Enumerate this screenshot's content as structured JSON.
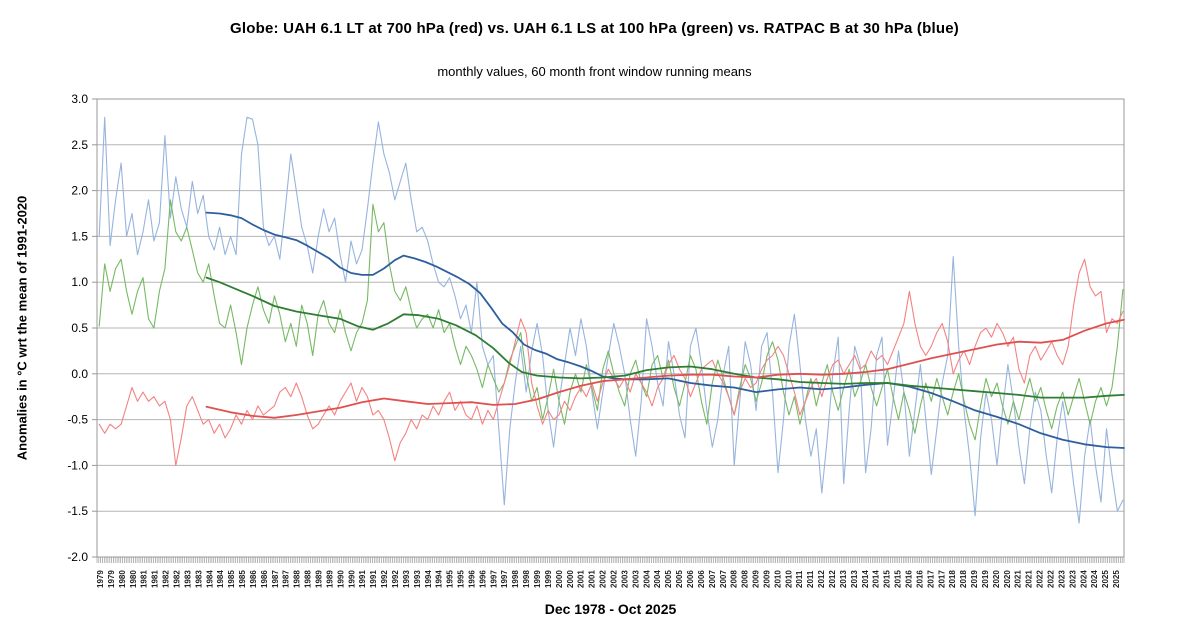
{
  "chart": {
    "title": "Globe: UAH 6.1 LT at 700 hPa (red) vs. UAH 6.1 LS at 100 hPa (green) vs. RATPAC B at 30 hPa (blue)",
    "subtitle": "monthly values, 60 month front window running means",
    "ylabel": "Anomalies in °C wrt the mean of 1991-2020",
    "xlabel": "Dec 1978 - Oct 2025"
  },
  "chart_data": {
    "type": "line",
    "title": "Globe: UAH 6.1 LT at 700 hPa (red) vs. UAH 6.1 LS at 100 hPa (green) vs. RATPAC B at 30 hPa (blue)",
    "subtitle": "monthly values, 60 month front window running means",
    "ylabel": "Anomalies in °C wrt the mean of 1991-2020",
    "xlabel": "Dec 1978 - Oct 2025",
    "grid": true,
    "legend": "none",
    "ylim": [
      -2.0,
      3.0
    ],
    "yticks": [
      "3.0",
      "2.5",
      "2.0",
      "1.5",
      "1.0",
      "0.5",
      "0.0",
      "-0.5",
      "-1.0",
      "-1.5",
      "-2.0"
    ],
    "x_range": [
      1978.9,
      2025.8
    ],
    "x_tick_years": [
      1979,
      1980,
      1981,
      1982,
      1983,
      1984,
      1985,
      1986,
      1987,
      1988,
      1989,
      1990,
      1991,
      1992,
      1993,
      1994,
      1995,
      1996,
      1997,
      1998,
      1999,
      2000,
      2001,
      2002,
      2003,
      2004,
      2005,
      2006,
      2007,
      2008,
      2009,
      2010,
      2011,
      2012,
      2013,
      2014,
      2015,
      2016,
      2017,
      2018,
      2019,
      2020,
      2021,
      2022,
      2023,
      2024,
      2025
    ],
    "x_tick_label_repeat": 2,
    "colors": {
      "red_monthly": "#f48282",
      "red_mean": "#e05050",
      "green_monthly": "#77b964",
      "green_mean": "#2e7d32",
      "blue_monthly": "#97b4de",
      "blue_mean": "#2f5e9e",
      "grid": "#b5b5b5",
      "axis": "#999999"
    },
    "series": [
      {
        "name": "RATPAC B 30 hPa monthly",
        "role": "monthly",
        "color": "#97b4de",
        "width": 1.1,
        "x0": 1979.0,
        "x_step": 0.25,
        "values": [
          1.5,
          2.8,
          1.4,
          1.9,
          2.3,
          1.5,
          1.75,
          1.3,
          1.55,
          1.9,
          1.45,
          1.65,
          2.6,
          1.7,
          2.15,
          1.8,
          1.6,
          2.1,
          1.75,
          1.95,
          1.5,
          1.35,
          1.6,
          1.3,
          1.5,
          1.3,
          2.4,
          2.8,
          2.78,
          2.5,
          1.6,
          1.4,
          1.5,
          1.25,
          1.8,
          2.4,
          2.0,
          1.6,
          1.4,
          1.1,
          1.5,
          1.8,
          1.55,
          1.7,
          1.3,
          1.0,
          1.45,
          1.2,
          1.35,
          1.8,
          2.3,
          2.75,
          2.4,
          2.2,
          1.9,
          2.1,
          2.3,
          1.9,
          1.55,
          1.6,
          1.45,
          1.2,
          1.0,
          0.95,
          1.05,
          0.85,
          0.6,
          0.75,
          0.45,
          1.0,
          0.3,
          0.1,
          0.2,
          -0.6,
          -1.43,
          -0.6,
          -0.1,
          0.3,
          -0.2,
          0.25,
          0.55,
          0.2,
          -0.4,
          -0.8,
          -0.3,
          0.1,
          0.5,
          0.2,
          0.6,
          0.3,
          -0.2,
          -0.6,
          -0.2,
          0.2,
          0.55,
          0.3,
          0.0,
          -0.5,
          -0.9,
          -0.3,
          0.6,
          0.3,
          -0.1,
          -0.35,
          0.35,
          0.0,
          -0.45,
          -0.7,
          0.3,
          0.5,
          0.1,
          -0.4,
          -0.8,
          -0.5,
          0.0,
          0.3,
          -1.0,
          -0.3,
          0.35,
          0.1,
          -0.4,
          0.3,
          0.45,
          -0.2,
          -1.08,
          -0.5,
          0.3,
          0.65,
          0.1,
          -0.5,
          -0.9,
          -0.6,
          -1.3,
          -0.7,
          0.0,
          0.4,
          -1.2,
          -0.4,
          0.3,
          0.1,
          -1.08,
          -0.6,
          0.2,
          0.4,
          -0.78,
          -0.3,
          0.25,
          -0.2,
          -0.9,
          -0.4,
          0.1,
          -0.5,
          -1.1,
          -0.6,
          -0.1,
          0.2,
          1.28,
          0.3,
          -0.4,
          -0.9,
          -1.55,
          -0.7,
          -0.2,
          -0.5,
          -1.0,
          -0.4,
          0.1,
          -0.3,
          -0.8,
          -1.2,
          -0.6,
          -0.2,
          -0.4,
          -0.9,
          -1.3,
          -0.7,
          -0.3,
          -0.7,
          -1.2,
          -1.63,
          -0.9,
          -0.5,
          -1.0,
          -1.4,
          -0.6,
          -1.1,
          -1.5,
          -1.38
        ]
      },
      {
        "name": "UAH 6.1 LS 100 hPa monthly",
        "role": "monthly",
        "color": "#77b964",
        "width": 1.1,
        "x0": 1979.0,
        "x_step": 0.25,
        "values": [
          0.52,
          1.2,
          0.9,
          1.15,
          1.25,
          0.9,
          0.65,
          0.9,
          1.05,
          0.6,
          0.5,
          0.9,
          1.15,
          1.9,
          1.55,
          1.45,
          1.6,
          1.35,
          1.1,
          1.0,
          1.2,
          0.85,
          0.55,
          0.5,
          0.75,
          0.45,
          0.1,
          0.5,
          0.75,
          0.95,
          0.7,
          0.55,
          0.85,
          0.65,
          0.35,
          0.55,
          0.3,
          0.75,
          0.55,
          0.2,
          0.65,
          0.8,
          0.55,
          0.45,
          0.7,
          0.45,
          0.25,
          0.45,
          0.55,
          0.8,
          1.85,
          1.55,
          1.65,
          1.2,
          0.9,
          0.8,
          0.95,
          0.7,
          0.5,
          0.6,
          0.65,
          0.5,
          0.7,
          0.45,
          0.55,
          0.3,
          0.1,
          0.3,
          0.2,
          0.05,
          -0.15,
          0.1,
          -0.05,
          -0.2,
          -0.1,
          0.15,
          0.3,
          0.45,
          0.0,
          -0.3,
          -0.15,
          -0.5,
          -0.25,
          0.05,
          -0.3,
          -0.55,
          -0.2,
          0.0,
          -0.2,
          0.1,
          -0.15,
          -0.4,
          0.05,
          0.25,
          0.0,
          -0.2,
          -0.35,
          0.0,
          0.15,
          -0.1,
          -0.25,
          0.1,
          0.2,
          -0.05,
          0.15,
          -0.15,
          -0.35,
          -0.1,
          0.2,
          0.05,
          -0.3,
          -0.55,
          -0.1,
          0.15,
          -0.05,
          -0.25,
          -0.45,
          -0.15,
          0.1,
          -0.05,
          -0.3,
          -0.1,
          0.2,
          0.35,
          0.15,
          -0.2,
          -0.45,
          -0.25,
          -0.55,
          -0.3,
          -0.05,
          -0.35,
          -0.1,
          0.1,
          -0.2,
          -0.4,
          -0.15,
          0.05,
          -0.25,
          -0.1,
          0.1,
          -0.15,
          -0.35,
          -0.15,
          0.05,
          -0.25,
          -0.5,
          -0.2,
          -0.4,
          -0.65,
          -0.35,
          -0.1,
          -0.3,
          -0.05,
          -0.25,
          -0.45,
          -0.2,
          0.0,
          -0.3,
          -0.55,
          -0.72,
          -0.35,
          -0.05,
          -0.25,
          -0.1,
          -0.35,
          -0.55,
          -0.3,
          -0.5,
          -0.25,
          -0.05,
          -0.3,
          -0.15,
          -0.4,
          -0.6,
          -0.35,
          -0.2,
          -0.45,
          -0.25,
          -0.05,
          -0.3,
          -0.55,
          -0.3,
          -0.15,
          -0.35,
          -0.15,
          0.3,
          0.92
        ]
      },
      {
        "name": "UAH 6.1 LT 700 hPa monthly",
        "role": "monthly",
        "color": "#f48282",
        "width": 1.1,
        "x0": 1979.0,
        "x_step": 0.25,
        "values": [
          -0.55,
          -0.65,
          -0.55,
          -0.6,
          -0.55,
          -0.35,
          -0.15,
          -0.3,
          -0.2,
          -0.3,
          -0.25,
          -0.35,
          -0.3,
          -0.5,
          -1.0,
          -0.7,
          -0.35,
          -0.25,
          -0.4,
          -0.55,
          -0.5,
          -0.65,
          -0.55,
          -0.7,
          -0.6,
          -0.45,
          -0.55,
          -0.4,
          -0.5,
          -0.35,
          -0.45,
          -0.4,
          -0.35,
          -0.2,
          -0.15,
          -0.25,
          -0.1,
          -0.25,
          -0.45,
          -0.6,
          -0.55,
          -0.45,
          -0.35,
          -0.45,
          -0.3,
          -0.2,
          -0.1,
          -0.3,
          -0.15,
          -0.25,
          -0.45,
          -0.4,
          -0.5,
          -0.7,
          -0.95,
          -0.75,
          -0.65,
          -0.5,
          -0.6,
          -0.45,
          -0.5,
          -0.35,
          -0.45,
          -0.3,
          -0.2,
          -0.4,
          -0.3,
          -0.45,
          -0.5,
          -0.35,
          -0.55,
          -0.4,
          -0.5,
          -0.3,
          -0.1,
          0.1,
          0.35,
          0.6,
          0.45,
          -0.1,
          -0.35,
          -0.55,
          -0.4,
          -0.5,
          -0.45,
          -0.3,
          -0.4,
          -0.25,
          -0.15,
          -0.25,
          -0.1,
          -0.3,
          -0.1,
          0.05,
          -0.05,
          -0.15,
          -0.05,
          -0.2,
          0.0,
          -0.1,
          -0.2,
          -0.35,
          -0.15,
          -0.05,
          0.1,
          0.2,
          0.05,
          -0.05,
          -0.25,
          -0.1,
          0.05,
          0.1,
          0.15,
          0.0,
          -0.1,
          -0.25,
          -0.45,
          -0.2,
          -0.05,
          -0.15,
          -0.1,
          0.05,
          0.15,
          0.2,
          0.3,
          0.2,
          0.0,
          -0.2,
          -0.45,
          -0.3,
          -0.15,
          -0.05,
          -0.25,
          -0.05,
          0.1,
          0.15,
          0.0,
          0.1,
          0.2,
          0.05,
          0.1,
          0.25,
          0.15,
          0.2,
          0.1,
          0.25,
          0.4,
          0.55,
          0.9,
          0.55,
          0.3,
          0.2,
          0.3,
          0.45,
          0.55,
          0.35,
          0.0,
          0.15,
          0.25,
          0.1,
          0.3,
          0.45,
          0.5,
          0.4,
          0.55,
          0.45,
          0.3,
          0.4,
          0.05,
          -0.1,
          0.2,
          0.3,
          0.15,
          0.25,
          0.35,
          0.2,
          0.1,
          0.3,
          0.75,
          1.1,
          1.25,
          0.95,
          0.85,
          0.9,
          0.45,
          0.6,
          0.55,
          0.68
        ]
      },
      {
        "name": "RATPAC B 30 hPa 60-month running mean",
        "role": "running_mean",
        "color": "#2f5e9e",
        "width": 1.8,
        "x": [
          1983.9,
          1984.5,
          1985,
          1985.5,
          1986,
          1986.5,
          1987,
          1987.5,
          1988,
          1988.5,
          1989,
          1989.5,
          1990,
          1990.5,
          1991,
          1991.5,
          1992,
          1992.5,
          1992.9,
          1993.4,
          1993.9,
          1994.4,
          1994.9,
          1995.4,
          1995.9,
          1996.4,
          1996.9,
          1997.4,
          1997.9,
          1998.4,
          1998.9,
          1999.4,
          1999.9,
          2000.5,
          2001,
          2001.5,
          2002,
          2002.5,
          2003,
          2004,
          2005,
          2006,
          2007,
          2008,
          2009,
          2010,
          2011,
          2012,
          2013,
          2014,
          2015,
          2016,
          2017,
          2018,
          2019,
          2020,
          2021,
          2022,
          2023,
          2024,
          2025,
          2025.8
        ],
        "values": [
          1.76,
          1.75,
          1.73,
          1.7,
          1.63,
          1.57,
          1.52,
          1.49,
          1.46,
          1.4,
          1.33,
          1.26,
          1.16,
          1.1,
          1.08,
          1.08,
          1.15,
          1.24,
          1.29,
          1.26,
          1.22,
          1.17,
          1.11,
          1.05,
          0.98,
          0.88,
          0.72,
          0.55,
          0.45,
          0.32,
          0.26,
          0.22,
          0.16,
          0.12,
          0.08,
          0.03,
          -0.03,
          -0.05,
          -0.06,
          -0.06,
          -0.05,
          -0.1,
          -0.13,
          -0.15,
          -0.2,
          -0.17,
          -0.15,
          -0.17,
          -0.15,
          -0.12,
          -0.1,
          -0.14,
          -0.21,
          -0.3,
          -0.4,
          -0.47,
          -0.55,
          -0.65,
          -0.72,
          -0.77,
          -0.8,
          -0.81
        ]
      },
      {
        "name": "UAH 6.1 LS 100 hPa 60-month running mean",
        "role": "running_mean",
        "color": "#2e7d32",
        "width": 1.8,
        "x": [
          1983.9,
          1984.5,
          1985,
          1986,
          1987,
          1988,
          1989,
          1990,
          1990.8,
          1991.5,
          1992.2,
          1992.9,
          1993.6,
          1994.5,
          1995.3,
          1996.2,
          1997,
          1997.7,
          1998.3,
          1999,
          2000,
          2001,
          2002,
          2003,
          2004,
          2005,
          2006,
          2007,
          2008,
          2009,
          2010,
          2011,
          2012,
          2013,
          2014,
          2015,
          2016,
          2017,
          2018,
          2019,
          2020,
          2021,
          2022,
          2023,
          2024,
          2025,
          2025.8
        ],
        "values": [
          1.05,
          1.0,
          0.95,
          0.85,
          0.74,
          0.68,
          0.64,
          0.6,
          0.52,
          0.48,
          0.55,
          0.65,
          0.64,
          0.6,
          0.53,
          0.42,
          0.28,
          0.12,
          0.02,
          -0.02,
          -0.04,
          -0.05,
          -0.04,
          -0.02,
          0.04,
          0.07,
          0.08,
          0.05,
          0.0,
          -0.04,
          -0.06,
          -0.09,
          -0.1,
          -0.11,
          -0.1,
          -0.1,
          -0.13,
          -0.15,
          -0.17,
          -0.19,
          -0.21,
          -0.23,
          -0.26,
          -0.26,
          -0.26,
          -0.24,
          -0.23
        ]
      },
      {
        "name": "UAH 6.1 LT 700 hPa 60-month running mean",
        "role": "running_mean",
        "color": "#e05050",
        "width": 1.8,
        "x": [
          1983.9,
          1985,
          1986,
          1987,
          1988,
          1989,
          1990,
          1991,
          1992,
          1993,
          1994,
          1995,
          1996,
          1997,
          1998,
          1999,
          2000,
          2001,
          2002,
          2003,
          2004,
          2005,
          2006,
          2007,
          2008,
          2009,
          2010,
          2011,
          2012,
          2013,
          2014,
          2015,
          2016,
          2017,
          2018,
          2019,
          2020,
          2021,
          2022,
          2023,
          2024,
          2025,
          2025.8
        ],
        "values": [
          -0.36,
          -0.42,
          -0.46,
          -0.48,
          -0.45,
          -0.41,
          -0.37,
          -0.31,
          -0.27,
          -0.3,
          -0.33,
          -0.32,
          -0.31,
          -0.34,
          -0.33,
          -0.28,
          -0.2,
          -0.13,
          -0.08,
          -0.06,
          -0.04,
          -0.02,
          -0.01,
          -0.01,
          -0.03,
          -0.04,
          -0.01,
          0.0,
          -0.01,
          0.0,
          0.02,
          0.05,
          0.11,
          0.17,
          0.22,
          0.27,
          0.32,
          0.35,
          0.34,
          0.37,
          0.47,
          0.55,
          0.59
        ]
      }
    ]
  }
}
